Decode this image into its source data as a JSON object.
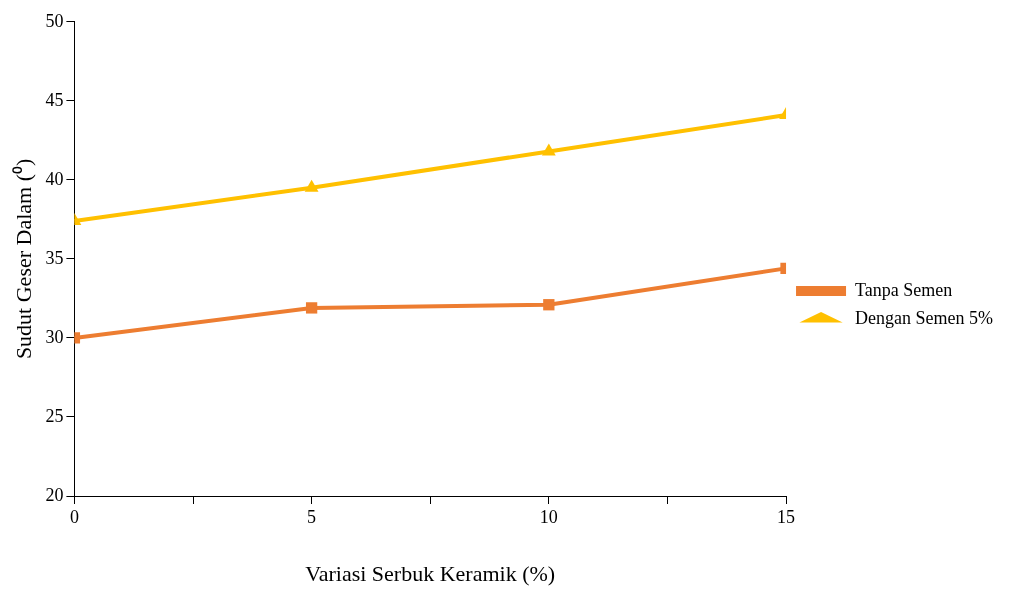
{
  "chart_data": {
    "type": "line",
    "xlabel": "Variasi Serbuk Keramik (%)",
    "ylabel": "Sudut Geser Dalam (⁰)",
    "x": [
      0,
      5,
      10,
      15
    ],
    "series": [
      {
        "name": "Tanpa Semen",
        "color": "#ed7d31",
        "marker": "square",
        "values": [
          30,
          31.9,
          32.1,
          34.4
        ]
      },
      {
        "name": "Dengan Semen 5%",
        "color": "#ffc000",
        "marker": "triangle",
        "values": [
          37.4,
          39.5,
          41.8,
          44.1
        ]
      }
    ],
    "xlim": [
      0,
      15
    ],
    "xticks": [
      0,
      {
        "value": 2.5,
        "label": null
      },
      5,
      {
        "value": 7.5,
        "label": null
      },
      10,
      {
        "value": 12.5,
        "label": null
      },
      15
    ],
    "ylim": [
      20,
      50
    ],
    "yticks": [
      20,
      25,
      30,
      35,
      40,
      45,
      50
    ],
    "grid": false,
    "legend": "right"
  }
}
